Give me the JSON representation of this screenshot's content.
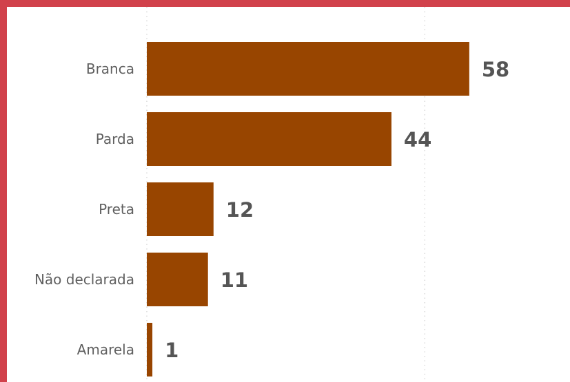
{
  "colors": {
    "bar": "#984500",
    "value_outside": "#555555",
    "value_inside": "#ffffff",
    "frame": "#d1414b"
  },
  "chart_data": {
    "type": "bar",
    "orientation": "horizontal",
    "categories": [
      "Branca",
      "Parda",
      "Preta",
      "Não declarada",
      "Amarela"
    ],
    "values": [
      58,
      44,
      12,
      11,
      1
    ],
    "title": "",
    "xlabel": "",
    "ylabel": "",
    "xlim": [
      0,
      60
    ],
    "grid": true,
    "legend": "none"
  }
}
